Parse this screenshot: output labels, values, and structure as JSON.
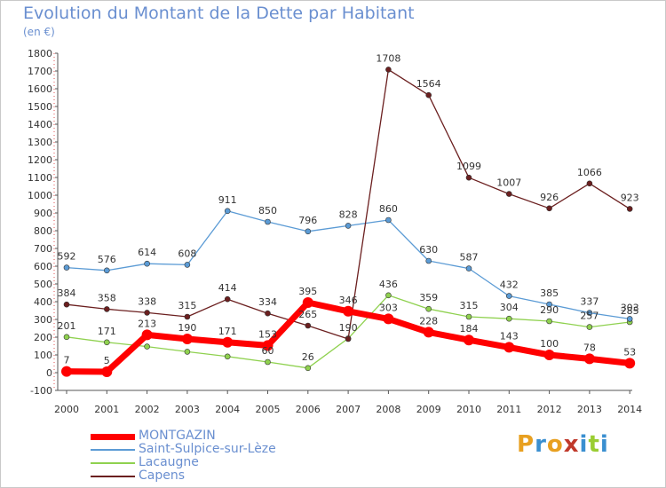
{
  "title": "Evolution du Montant de la Dette par Habitant",
  "subtitle": "(en €)",
  "logo": "Proxiti",
  "logo_colors": [
    "#e8a020",
    "#3a8fd0",
    "#e8a020",
    "#c0392b",
    "#3a8fd0",
    "#9acd32",
    "#3a8fd0"
  ],
  "chart_data": {
    "type": "line",
    "x": [
      "2000",
      "2001",
      "2002",
      "2003",
      "2004",
      "2005",
      "2006",
      "2007",
      "2008",
      "2009",
      "2010",
      "2011",
      "2012",
      "2013",
      "2014"
    ],
    "ylim": [
      -100,
      1800
    ],
    "yticks": [
      -100,
      0,
      100,
      200,
      300,
      400,
      500,
      600,
      700,
      800,
      900,
      1000,
      1100,
      1200,
      1300,
      1400,
      1500,
      1600,
      1700,
      1800
    ],
    "grid": false,
    "legend_position": "bottom-left",
    "series": [
      {
        "name": "MONTGAZIN",
        "color": "#ff0000",
        "line_width": 7,
        "marker_radius": 6,
        "values": [
          7,
          5,
          213,
          190,
          171,
          153,
          395,
          346,
          303,
          228,
          184,
          143,
          100,
          78,
          53
        ],
        "labels": [
          "7",
          "5",
          "213",
          "190",
          "171",
          "153",
          "395",
          "346",
          "303",
          "228",
          "184",
          "143",
          "100",
          "78",
          "53"
        ]
      },
      {
        "name": "Saint-Sulpice-sur-Lèze",
        "color": "#5b9bd5",
        "line_width": 1.3,
        "marker_radius": 3,
        "values": [
          592,
          576,
          614,
          608,
          911,
          850,
          796,
          828,
          860,
          630,
          587,
          432,
          385,
          337,
          303
        ],
        "labels": [
          "592",
          "576",
          "614",
          "608",
          "911",
          "850",
          "796",
          "828",
          "860",
          "630",
          "587",
          "432",
          "385",
          "337",
          "303"
        ]
      },
      {
        "name": "Lacaugne",
        "color": "#8fd14f",
        "line_width": 1.3,
        "marker_radius": 3,
        "values": [
          201,
          171,
          147,
          118,
          91,
          60,
          26,
          193,
          436,
          359,
          315,
          304,
          290,
          257,
          285
        ],
        "labels": [
          "201",
          "171",
          "",
          "",
          "",
          "60",
          "26",
          "",
          "436",
          "359",
          "315",
          "304",
          "290",
          "257",
          "285"
        ]
      },
      {
        "name": "Capens",
        "color": "#6b1f1f",
        "line_width": 1.3,
        "marker_radius": 3,
        "values": [
          384,
          358,
          338,
          315,
          414,
          334,
          265,
          190,
          1708,
          1564,
          1099,
          1007,
          926,
          1066,
          923
        ],
        "labels": [
          "384",
          "358",
          "338",
          "315",
          "414",
          "334",
          "265",
          "190",
          "1708",
          "1564",
          "1099",
          "1007",
          "926",
          "1066",
          "923"
        ]
      }
    ]
  }
}
